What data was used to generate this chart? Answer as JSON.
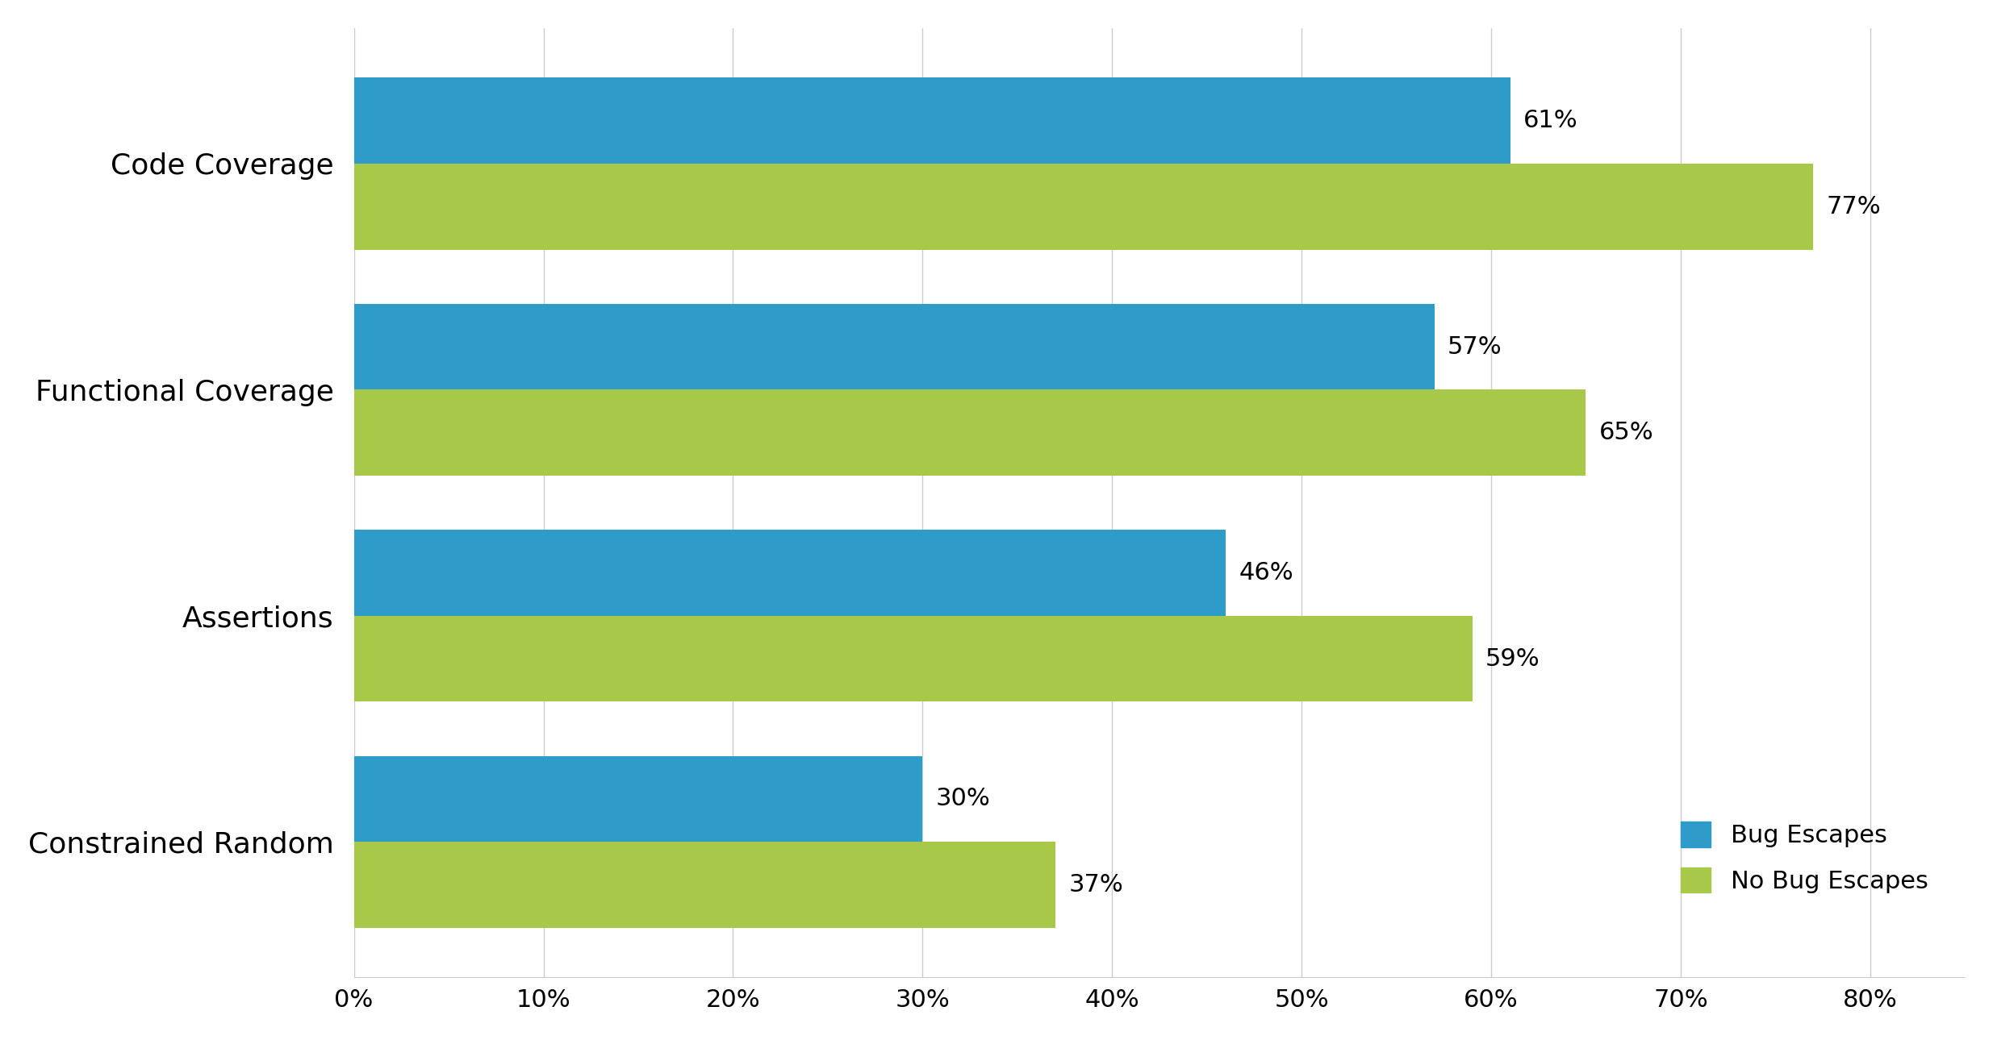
{
  "categories": [
    "Code Coverage",
    "Functional Coverage",
    "Assertions",
    "Constrained Random"
  ],
  "bug_escapes": [
    61,
    57,
    46,
    30
  ],
  "no_bug_escapes": [
    77,
    65,
    59,
    37
  ],
  "bug_escapes_color": "#2E9CC8",
  "no_bug_escapes_color": "#A8C84A",
  "legend_labels": [
    "Bug Escapes",
    "No Bug Escapes"
  ],
  "xlim": [
    0,
    85
  ],
  "xticks": [
    0,
    10,
    20,
    30,
    40,
    50,
    60,
    70,
    80
  ],
  "xtick_labels": [
    "0%",
    "10%",
    "20%",
    "30%",
    "40%",
    "50%",
    "60%",
    "70%",
    "80%"
  ],
  "bar_height": 0.38,
  "background_color": "#ffffff",
  "grid_color": "#cccccc",
  "label_fontsize": 26,
  "tick_fontsize": 22,
  "legend_fontsize": 22,
  "value_fontsize": 22
}
